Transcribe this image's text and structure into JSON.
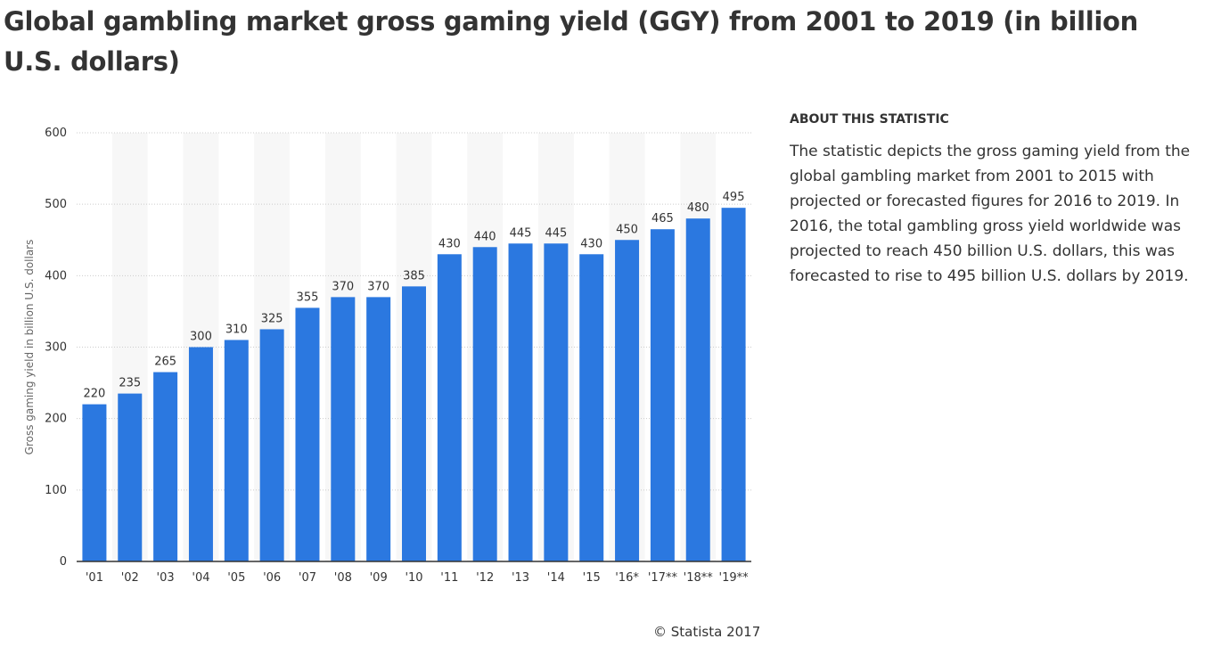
{
  "title": "Global gambling market gross gaming yield (GGY) from 2001 to 2019 (in billion U.S. dollars)",
  "about": {
    "heading": "ABOUT THIS STATISTIC",
    "text": "The statistic depicts the gross gaming yield from the global gambling market from 2001 to 2015 with projected or forecasted figures for 2016 to 2019. In 2016, the total gambling gross yield worldwide was projected to reach 450 billion U.S. dollars, this was forecasted to rise to 495 billion U.S. dollars by 2019."
  },
  "credit": "© Statista 2017",
  "colors": {
    "bar": "#2b78e0",
    "stripe": "#f7f7f7",
    "grid": "#cccccc",
    "axis": "#333333",
    "text": "#333333"
  },
  "chart_data": {
    "type": "bar",
    "title": "Global gambling market gross gaming yield (GGY) from 2001 to 2019 (in billion U.S. dollars)",
    "xlabel": "",
    "ylabel": "Gross gaming yield in billion U.S. dollars",
    "ylim": [
      0,
      600
    ],
    "yticks": [
      0,
      100,
      200,
      300,
      400,
      500,
      600
    ],
    "grid": true,
    "categories": [
      "'01",
      "'02",
      "'03",
      "'04",
      "'05",
      "'06",
      "'07",
      "'08",
      "'09",
      "'10",
      "'11",
      "'12",
      "'13",
      "'14",
      "'15",
      "'16*",
      "'17**",
      "'18**",
      "'19**"
    ],
    "values": [
      220,
      235,
      265,
      300,
      310,
      325,
      355,
      370,
      370,
      385,
      430,
      440,
      445,
      445,
      430,
      450,
      465,
      480,
      495
    ]
  }
}
